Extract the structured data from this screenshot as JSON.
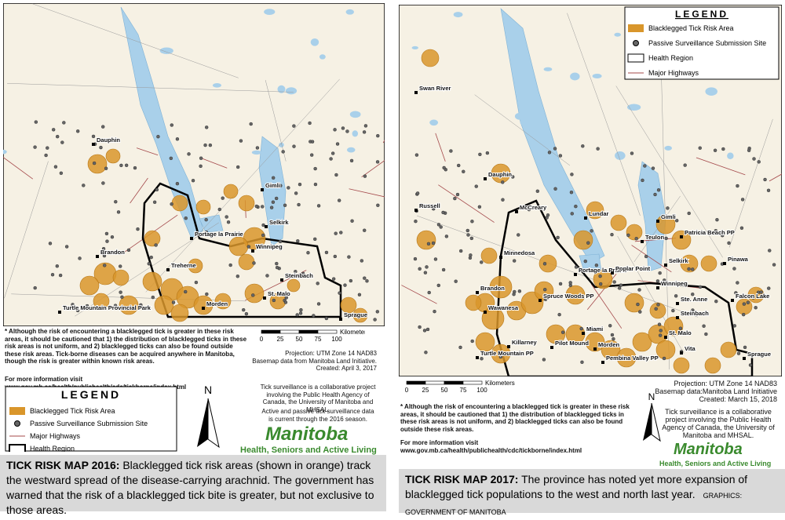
{
  "map_2016": {
    "places": [
      "Dauphin",
      "Gimli",
      "Selkirk",
      "Portage la Prairie",
      "Winnipeg",
      "Brandon",
      "Treherne",
      "Steinbach",
      "St. Malo",
      "Morden",
      "Turtle Mountain Provincial Park",
      "Sprague"
    ],
    "note": "* Although the risk of encountering a blacklegged tick is greater in these risk areas, it should be cautioned that 1) the distribution of blacklegged ticks in these risk areas is not uniform, and 2) blacklegged ticks can also be found outside these risk areas. Tick-borne diseases can be acquired anywhere in Manitoba, though the risk is greater within known risk areas.",
    "more_info": "For more information visit www.gov.mb.ca/health/publichealth/cdc/tickborne/index.html",
    "scale": {
      "unit": "Kilometers",
      "labels": [
        "0",
        "25",
        "50",
        "75",
        "100"
      ]
    },
    "projection": "Projection: UTM Zone 14 NAD83",
    "basemap": "Basemap data from Manitoba Land Initiative.",
    "created": "Created: April 3, 2017",
    "surveillance": "Tick surveillance is a collaborative project involving the Public Health Agency of Canada, the University of Manitoba and MHSAL.",
    "currency": "Active and passive tick surveillance data is current through the 2016 season.",
    "legend": {
      "title": "LEGEND",
      "items": [
        "Blacklegged Tick Risk Area",
        "Passive Surveillance Submission Site",
        "Major Highways",
        "Health Region"
      ]
    },
    "north": "N",
    "logo": {
      "name": "Manitoba",
      "dept": "Health, Seniors and Active Living"
    },
    "caption": {
      "title": "TICK RISK MAP 2016:",
      "text": "Blacklegged tick risk areas (shown in orange) track the westward spread of the disease-carrying arachnid. The government has warned that the risk of a blacklegged tick bite is greater, but not exclusive to those areas."
    }
  },
  "map_2017": {
    "places": [
      "Swan River",
      "Dauphin",
      "Russell",
      "McCreary",
      "Lundar",
      "Gimli",
      "Patricia Beach PP",
      "Teulon",
      "Selkirk",
      "Pinawa",
      "Minnedosa",
      "Portage la Prairie",
      "Poplar Point",
      "Winnipeg",
      "Brandon",
      "Ste. Anne",
      "Falcon Lake",
      "Spruce Woods PP",
      "Wawanesa",
      "Steinbach",
      "Miami",
      "St. Malo",
      "Killarney",
      "Pilot Mound",
      "Morden",
      "Pembina Valley PP",
      "Vita",
      "Turtle Mountain PP",
      "Sprague"
    ],
    "legend": {
      "title": "LEGEND",
      "items": [
        "Blacklegged Tick Risk Area",
        "Passive Surveillance Submission Site",
        "Health Region",
        "Major Highways"
      ]
    },
    "scale": {
      "unit": "Kilometers",
      "labels": [
        "0",
        "25",
        "50",
        "75",
        "100"
      ]
    },
    "projection": "Projection: UTM Zone 14 NAD83",
    "basemap": "Basemap data:Manitoba Land Initiative",
    "created": "Created: March 15, 2018",
    "note": "* Although the risk of encountering a blacklegged tick is greater in these risk areas, it should be cautioned that 1) the distribution of blacklegged ticks in these risk areas is not uniform, and 2) blacklegged ticks can also be found outside these risk areas.",
    "more_info_title": "For more information visit",
    "more_info_url": "www.gov.mb.ca/health/publichealth/cdc/tickborne/index.html",
    "surveillance": "Tick surveillance is a collaborative project involving the Public Health Agency of Canada, the University of Manitoba and MHSAL.",
    "north": "N",
    "logo": {
      "name": "Manitoba",
      "dept": "Health, Seniors and Active Living"
    },
    "caption": {
      "title": "TICK RISK MAP 2017:",
      "text": "The province has noted yet more expansion of blacklegged tick populations to the west and north last year.",
      "credit": "GRAPHICS: GOVERNMENT OF MANITOBA"
    }
  }
}
